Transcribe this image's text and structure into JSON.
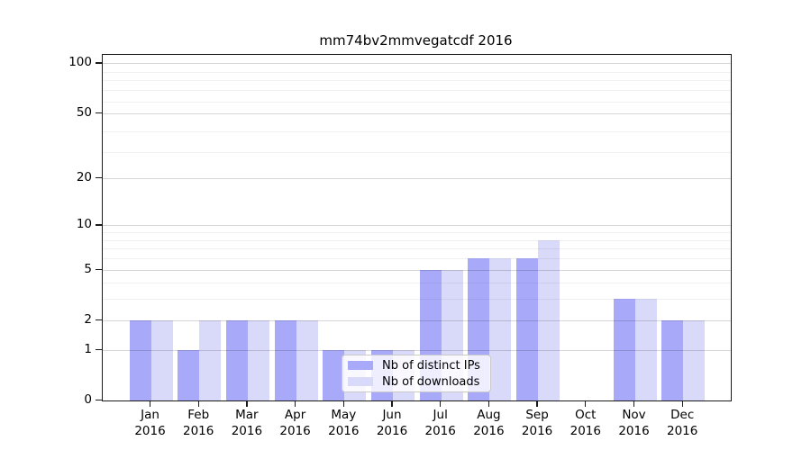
{
  "title": "mm74bv2mmvegatcdf 2016",
  "chart_data": {
    "type": "bar",
    "title": "mm74bv2mmvegatcdf 2016",
    "categories": [
      "Jan",
      "Feb",
      "Mar",
      "Apr",
      "May",
      "Jun",
      "Jul",
      "Aug",
      "Sep",
      "Oct",
      "Nov",
      "Dec"
    ],
    "year_label": "2016",
    "series": [
      {
        "name": "Nb of distinct IPs",
        "color": "#a9a9fa",
        "values": [
          2,
          1,
          2,
          2,
          1,
          1,
          5,
          6,
          6,
          0,
          3,
          2
        ]
      },
      {
        "name": "Nb of downloads",
        "color": "#d9d9fa",
        "values": [
          2,
          2,
          2,
          2,
          1,
          1,
          5,
          6,
          8,
          0,
          3,
          2
        ]
      }
    ],
    "yscale": "log10(1+value)",
    "ylim": [
      0,
      112
    ],
    "yticks": [
      0,
      1,
      2,
      5,
      10,
      20,
      50,
      100
    ],
    "minor_gridline_values": [
      3,
      4,
      6,
      7,
      8,
      9,
      29,
      39,
      59,
      69,
      79,
      89
    ],
    "grid": true,
    "legend_position": "lower-center-inside",
    "colors": {
      "axis": "#1a1a1a",
      "grid_major": "rgba(0,0,0,0.16)",
      "grid_minor": "rgba(0,0,0,0.06)"
    }
  }
}
